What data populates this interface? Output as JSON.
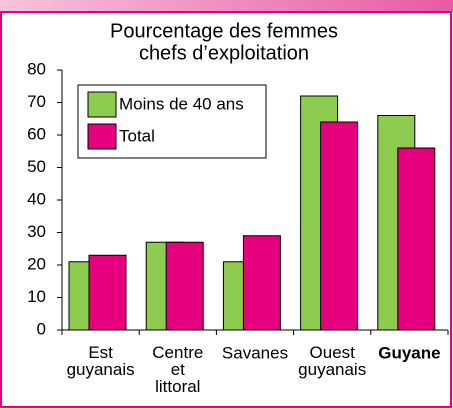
{
  "chart_data": {
    "type": "bar",
    "title": [
      "Pourcentage des femmes",
      "chefs d’exploitation"
    ],
    "categories": [
      "Est guyanais",
      "Centre et littoral",
      "Savanes",
      "Ouest guyanais",
      "Guyane"
    ],
    "series": [
      {
        "name": "Moins de 40 ans",
        "color": "#8dcc4e",
        "values": [
          21,
          27,
          21,
          72,
          66
        ]
      },
      {
        "name": "Total",
        "color": "#e6007e",
        "values": [
          23,
          27,
          29,
          64,
          56
        ]
      }
    ],
    "ylim": [
      0,
      80
    ],
    "yticks": [
      0,
      10,
      20,
      30,
      40,
      50,
      60,
      70,
      80
    ],
    "legend": "upper left"
  }
}
